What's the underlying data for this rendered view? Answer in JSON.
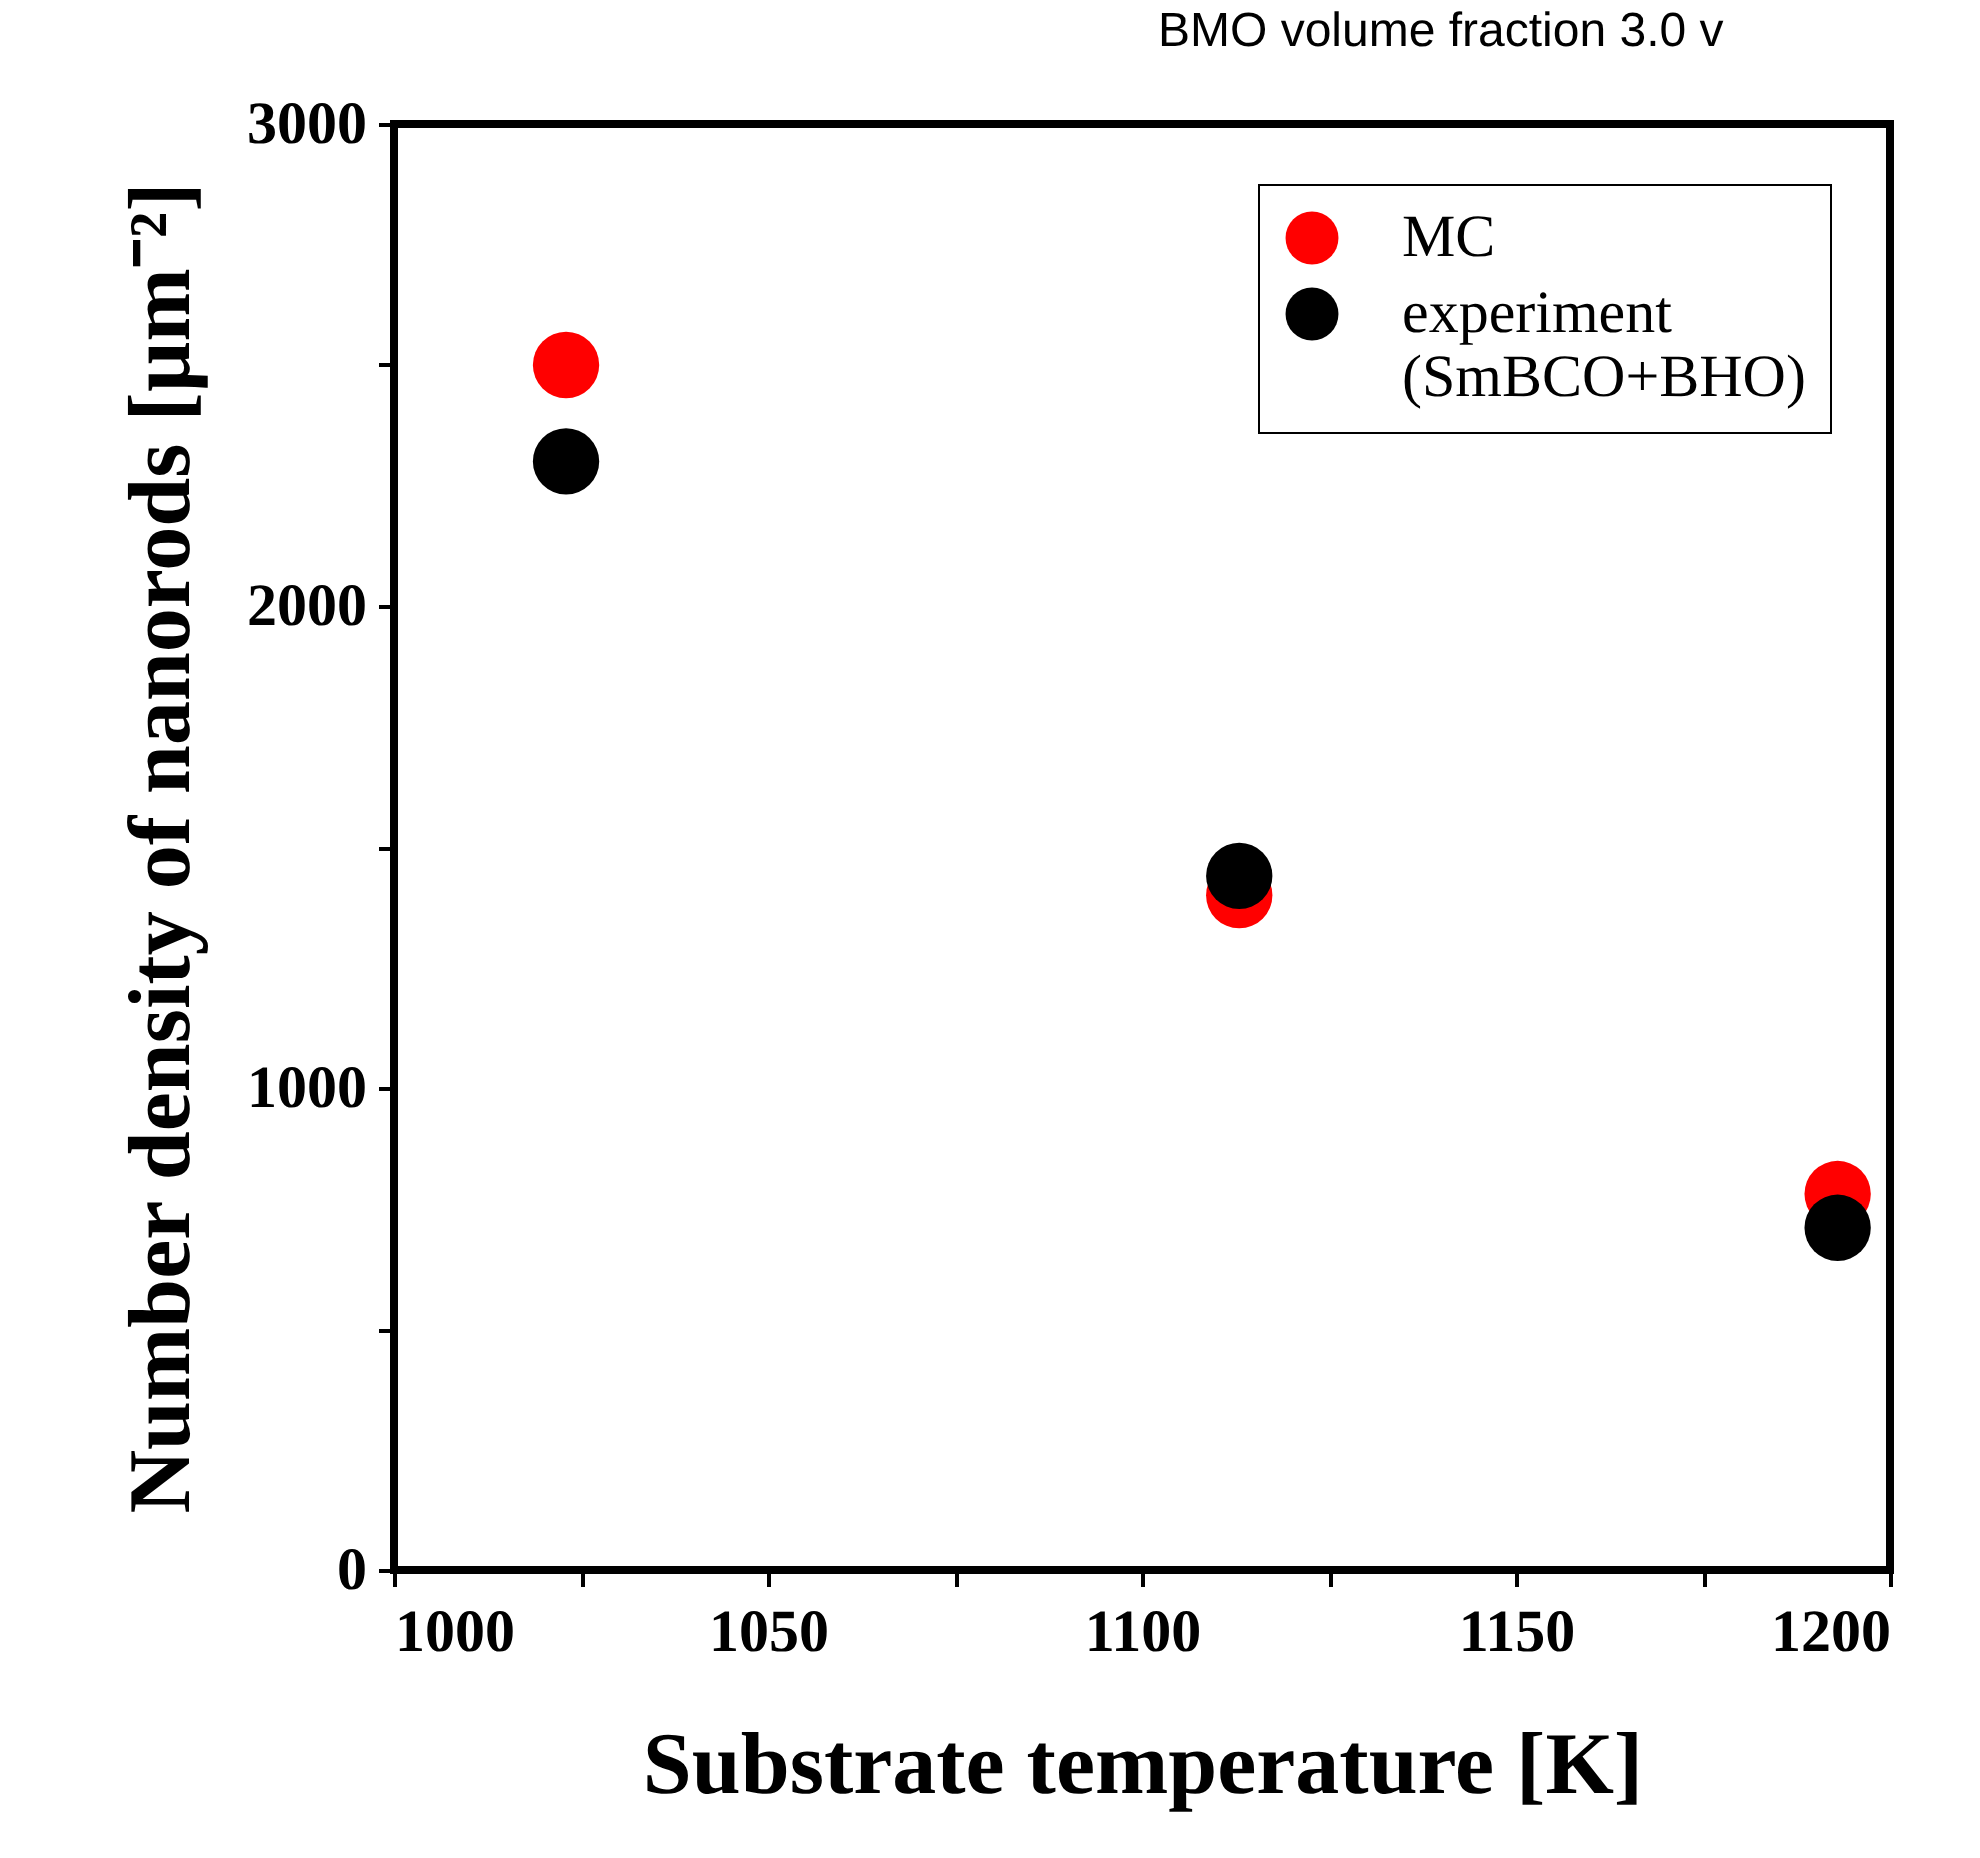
{
  "chart_data": {
    "type": "scatter",
    "xlabel": "Substrate temperature [K]",
    "ylabel": "Number density of nanorods [µm⁻²]",
    "annotations": [
      "BMO volume fraction 3.0 v"
    ],
    "x": [
      1023,
      1113,
      1193
    ],
    "series": [
      {
        "name": "MC",
        "color": "#ff0000",
        "values": [
          2500,
          1400,
          780
        ]
      },
      {
        "name": "experiment (SmBCO+BHO)",
        "color": "#000000",
        "values": [
          2300,
          1440,
          710
        ]
      }
    ],
    "xlim": [
      1000,
      1200
    ],
    "xticks": [
      1000,
      {
        "value": 1025,
        "label": null
      },
      1050,
      {
        "value": 1075,
        "label": null
      },
      1100,
      {
        "value": 1125,
        "label": null
      },
      1150,
      {
        "value": 1175,
        "label": null
      },
      1200
    ],
    "ylim": [
      0,
      3000
    ],
    "yticks": [
      0,
      {
        "value": 500,
        "label": null
      },
      1000,
      {
        "value": 1500,
        "label": null
      },
      2000,
      {
        "value": 2500,
        "label": null
      },
      3000
    ],
    "marker": "circle",
    "grid": false,
    "legend": "top right"
  }
}
